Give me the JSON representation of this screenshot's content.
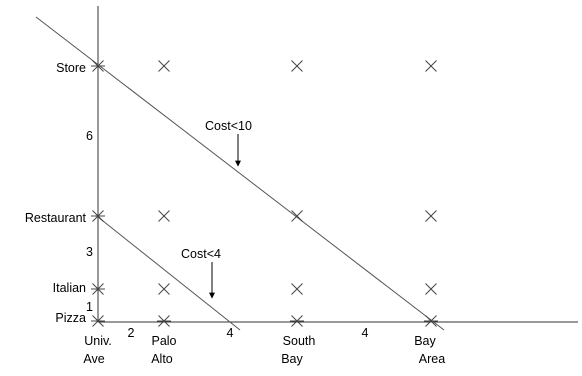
{
  "y_axis": {
    "labels": [
      "Store",
      "Restaurant",
      "Italian",
      "Pizza"
    ],
    "spacing": [
      "6",
      "3",
      "1"
    ]
  },
  "x_axis": {
    "labels": [
      {
        "line1": "Univ.",
        "line2": "Ave"
      },
      {
        "line1": "Palo",
        "line2": "Alto"
      },
      {
        "line1": "South",
        "line2": "Bay"
      },
      {
        "line1": "Bay",
        "line2": "Area"
      }
    ],
    "spacing": [
      "2",
      "4",
      "4"
    ]
  },
  "lines": [
    {
      "label": "Cost<10"
    },
    {
      "label": "Cost<4"
    }
  ]
}
